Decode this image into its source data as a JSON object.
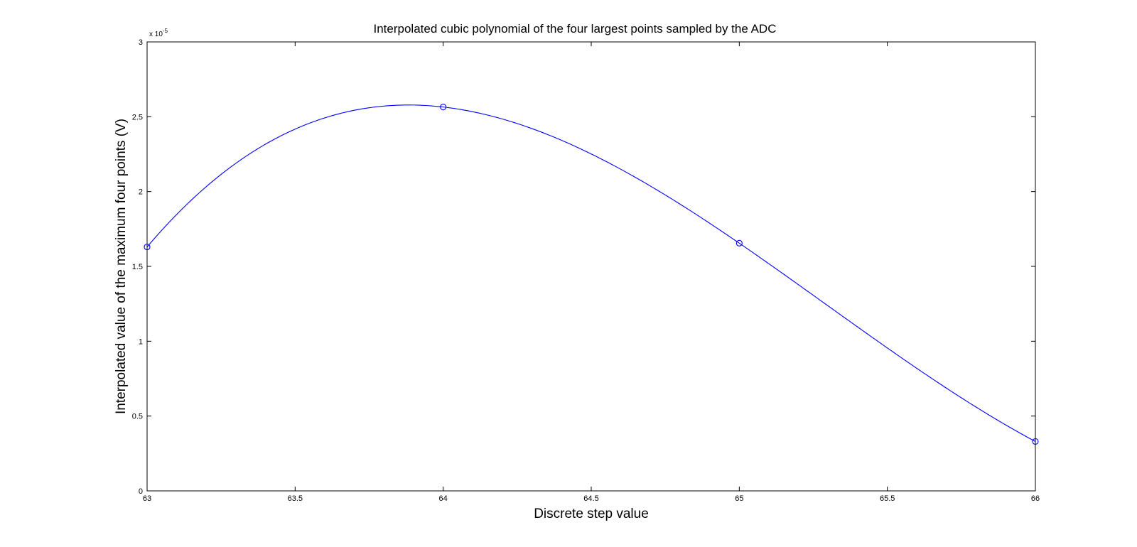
{
  "chart_data": {
    "type": "line",
    "title": "Interpolated cubic polynomial of the four largest points sampled by the ADC",
    "xlabel": "Discrete step value",
    "ylabel": "Interpolated value of the maximum four points (V)",
    "xlim": [
      63,
      66
    ],
    "ylim": [
      0,
      3e-05
    ],
    "y_exponent_label": "x 10",
    "y_exponent_power": "-5",
    "x_ticks": [
      {
        "value": 63,
        "label": "63"
      },
      {
        "value": 63.5,
        "label": "63.5"
      },
      {
        "value": 64,
        "label": "64"
      },
      {
        "value": 64.5,
        "label": "64.5"
      },
      {
        "value": 65,
        "label": "65"
      },
      {
        "value": 65.5,
        "label": "65.5"
      },
      {
        "value": 66,
        "label": "66"
      }
    ],
    "y_ticks": [
      {
        "value": 0,
        "label": "0"
      },
      {
        "value": 5e-06,
        "label": "0.5"
      },
      {
        "value": 1e-05,
        "label": "1"
      },
      {
        "value": 1.5e-05,
        "label": "1.5"
      },
      {
        "value": 2e-05,
        "label": "2"
      },
      {
        "value": 2.5e-05,
        "label": "2.5"
      },
      {
        "value": 3e-05,
        "label": "3"
      }
    ],
    "points": [
      {
        "x": 63,
        "y": 1.63e-05
      },
      {
        "x": 64,
        "y": 2.565e-05
      },
      {
        "x": 65,
        "y": 1.655e-05
      },
      {
        "x": 66,
        "y": 3.3e-06
      }
    ],
    "grid": false,
    "line_color": "#0000ff",
    "marker": "circle"
  }
}
